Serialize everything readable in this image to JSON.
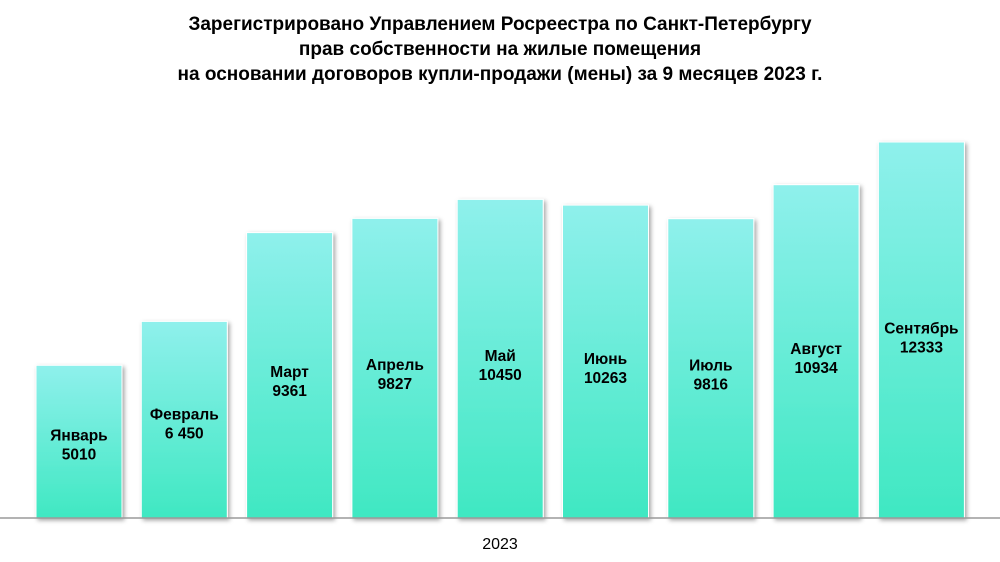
{
  "title_lines": [
    "Зарегистрировано Управлением Росреестра по Санкт-Петербургу",
    "прав собственности на жилые помещения",
    "на основании договоров купли-продажи (мены) за 9 месяцев 2023 г."
  ],
  "chart_data": {
    "type": "bar",
    "title": "Зарегистрировано Управлением Росреестра по Санкт-Петербургу прав собственности на жилые помещения на основании договоров купли-продажи (мены) за 9 месяцев 2023 г.",
    "xlabel": "2023",
    "ylabel": "",
    "categories": [
      "Январь",
      "Февраль",
      "Март",
      "Апрель",
      "Май",
      "Июнь",
      "Июль",
      "Август",
      "Сентябрь"
    ],
    "values": [
      5010,
      6450,
      9361,
      9827,
      10450,
      10263,
      9816,
      10934,
      12333
    ],
    "value_labels": [
      "5010",
      "6 450",
      "9361",
      "9827",
      "10450",
      "10263",
      "9816",
      "10934",
      "12333"
    ],
    "ylim": [
      0,
      12333
    ],
    "grid": false,
    "legend": "none",
    "bar_color_top": "#8ff0ec",
    "bar_color_bottom": "#3fe8c2"
  }
}
